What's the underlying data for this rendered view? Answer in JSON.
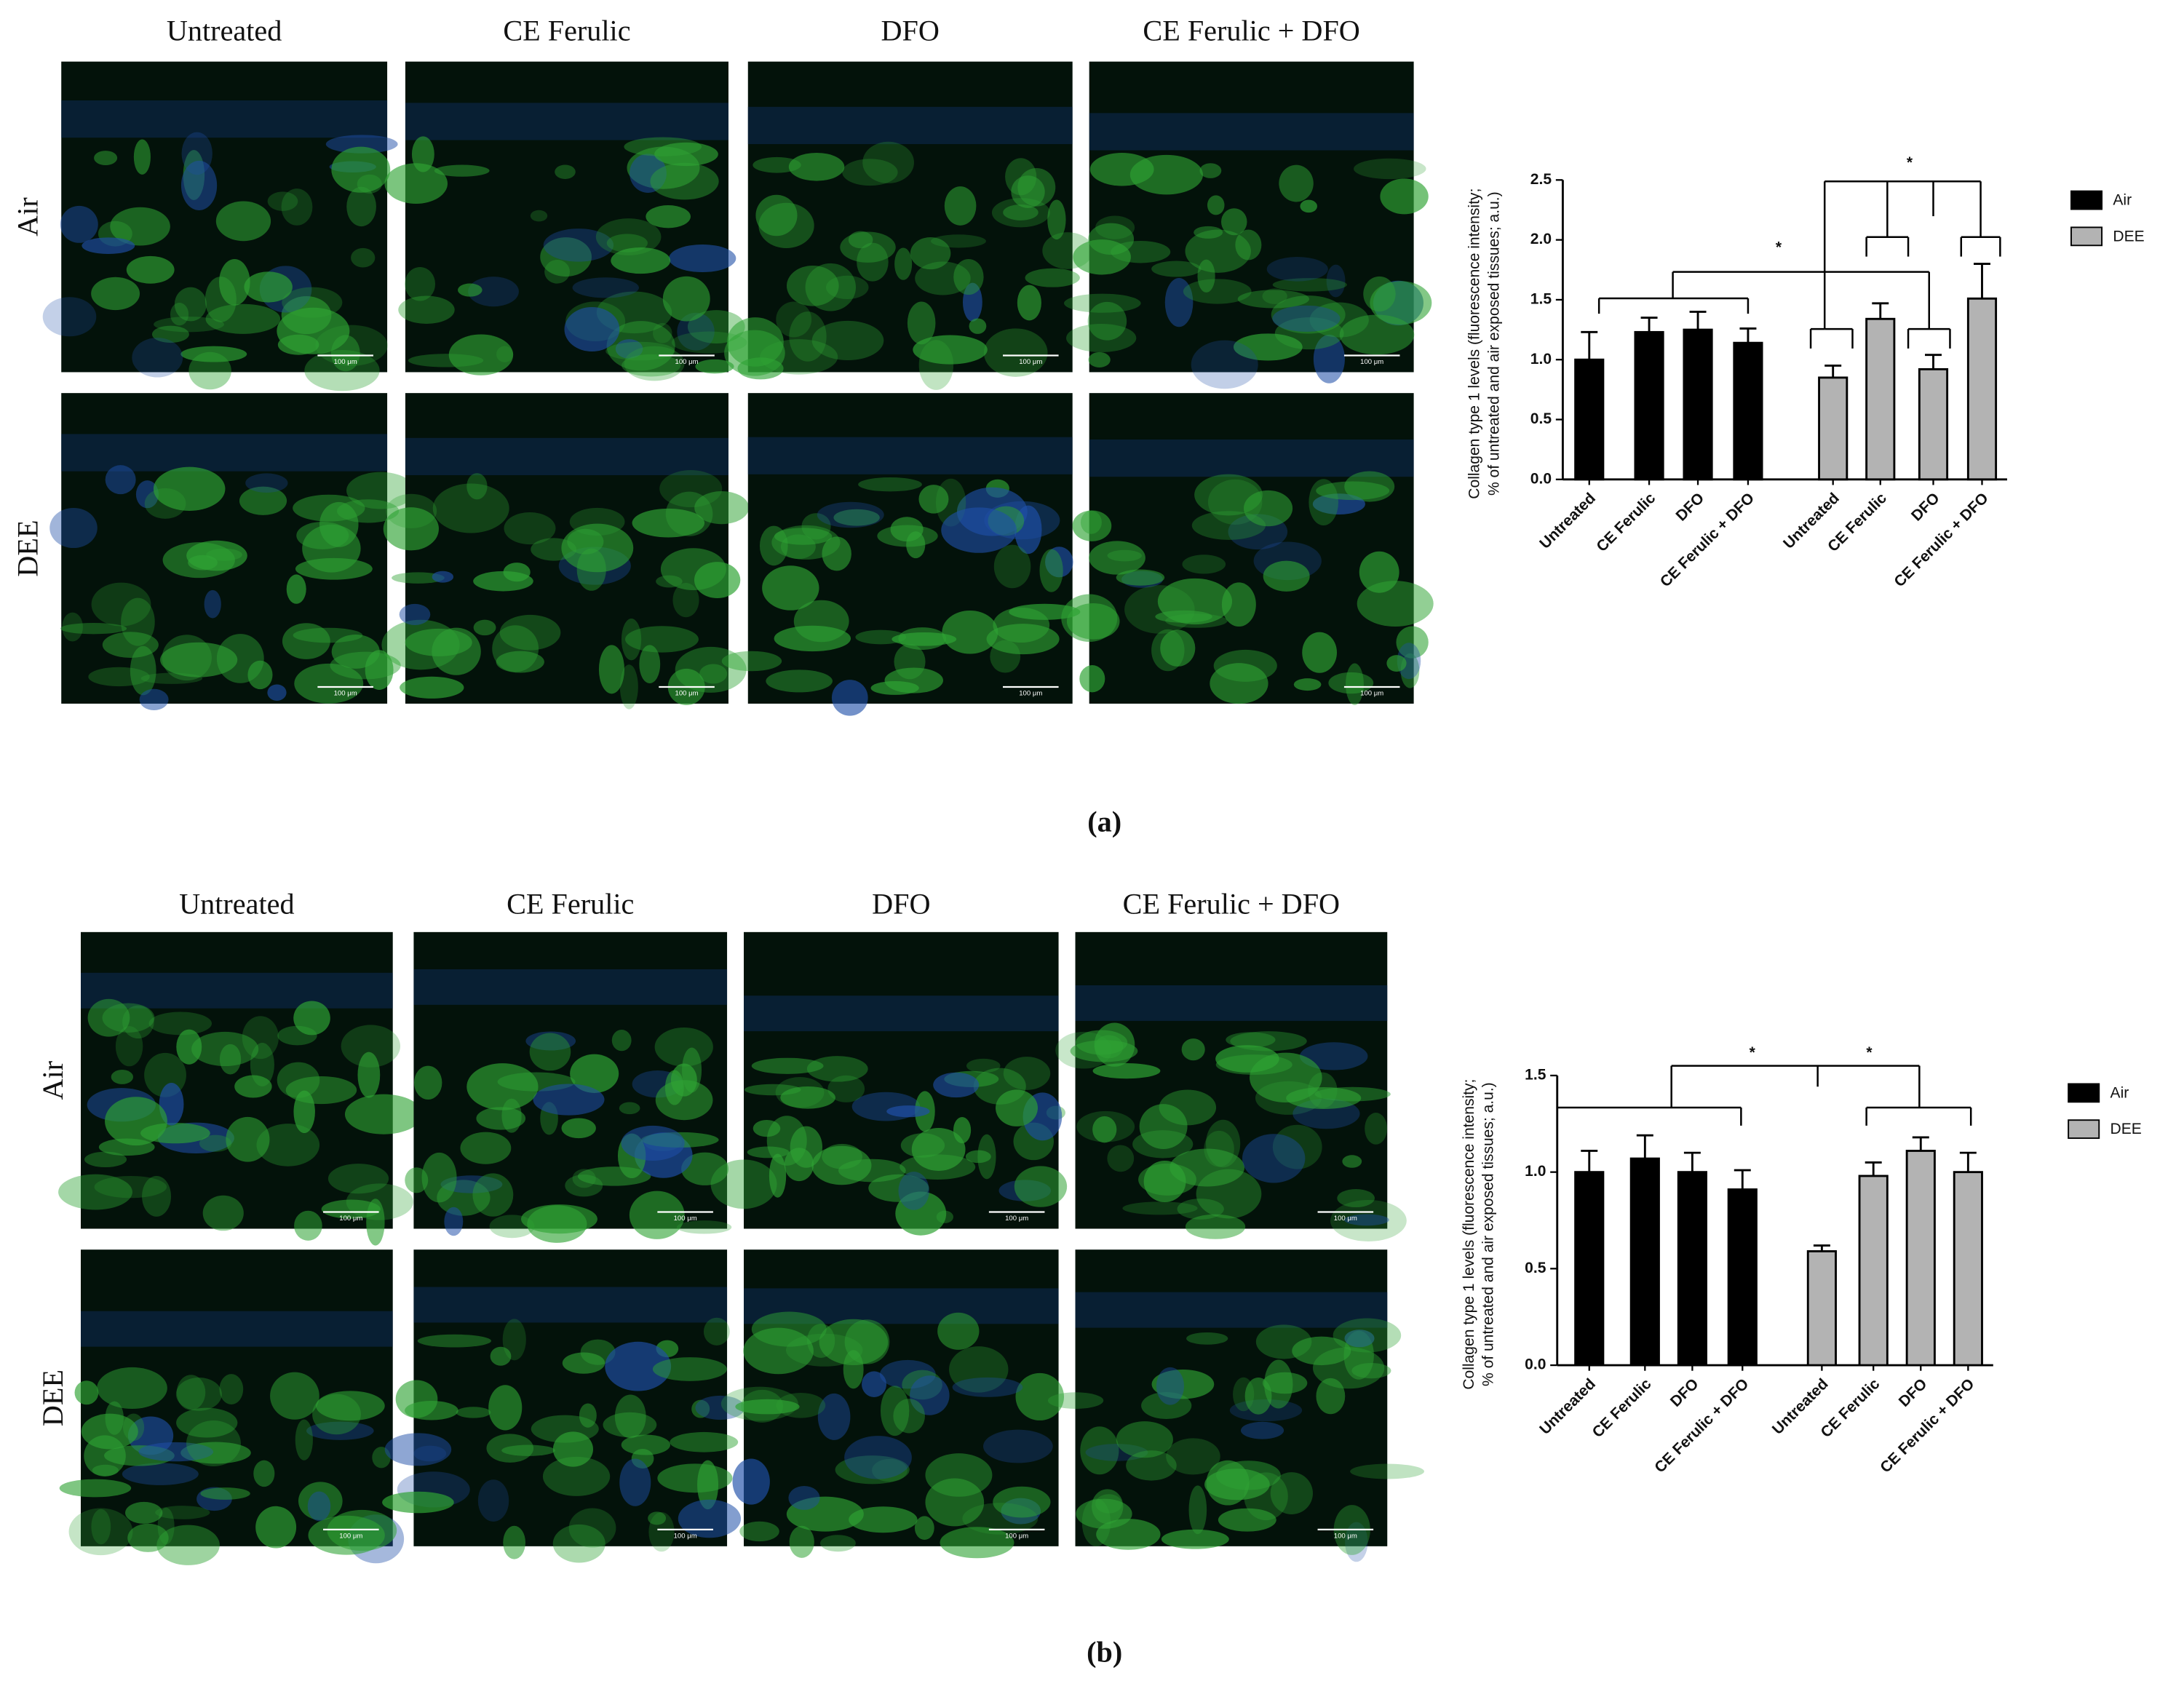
{
  "panels": [
    {
      "label": "(a)",
      "columns": [
        "Untreated",
        "CE Ferulic",
        "DFO",
        "CE Ferulic + DFO"
      ],
      "rows": [
        "Air",
        "DEE"
      ],
      "scale_bar": "100 μm"
    },
    {
      "label": "(b)",
      "columns": [
        "Untreated",
        "CE Ferulic",
        "DFO",
        "CE Ferulic + DFO"
      ],
      "rows": [
        "Air",
        "DEE"
      ],
      "scale_bar": "100 μm"
    }
  ],
  "chart_data": [
    {
      "type": "bar",
      "ylabel": [
        "Collagen type 1 levels (fluorescence intensity;",
        "% of untreated and air exposed tissues; a.u.)"
      ],
      "categories": [
        "Untreated",
        "CE Ferulic",
        "DFO",
        "CE Ferulic + DFO"
      ],
      "series": [
        {
          "name": "Air",
          "color": "#000000",
          "values": [
            1.0,
            1.23,
            1.25,
            1.14
          ],
          "errors": [
            0.23,
            0.12,
            0.15,
            0.12
          ]
        },
        {
          "name": "DEE",
          "color": "#b3b3b3",
          "values": [
            0.85,
            1.34,
            0.92,
            1.51
          ],
          "errors": [
            0.1,
            0.13,
            0.12,
            0.29
          ]
        }
      ],
      "ylim": [
        0,
        2.5
      ],
      "yticks": [
        {
          "value": 0,
          "label": "0.0"
        },
        0.5,
        {
          "value": 1,
          "label": "1.0"
        },
        1.5,
        {
          "value": 2,
          "label": "2.0"
        },
        2.5
      ],
      "annotations": [
        "*",
        "*"
      ],
      "legend": "right"
    },
    {
      "type": "bar",
      "ylabel": [
        "Collagen type 1 levels (fluorescence intensity;",
        "% of untreated and air exposed tissues; a.u.)"
      ],
      "categories": [
        "Untreated",
        "CE Ferulic",
        "DFO",
        "CE Ferulic + DFO"
      ],
      "series": [
        {
          "name": "Air",
          "color": "#000000",
          "values": [
            1.0,
            1.07,
            1.0,
            0.91
          ],
          "errors": [
            0.11,
            0.12,
            0.1,
            0.1
          ]
        },
        {
          "name": "DEE",
          "color": "#b3b3b3",
          "values": [
            0.59,
            0.98,
            1.11,
            1.0
          ],
          "errors": [
            0.03,
            0.07,
            0.07,
            0.1
          ]
        }
      ],
      "ylim": [
        0,
        1.5
      ],
      "yticks": [
        {
          "value": 0,
          "label": "0.0"
        },
        0.5,
        {
          "value": 1,
          "label": "1.0"
        },
        1.5
      ],
      "annotations": [
        "*",
        "*"
      ],
      "legend": "right"
    }
  ]
}
